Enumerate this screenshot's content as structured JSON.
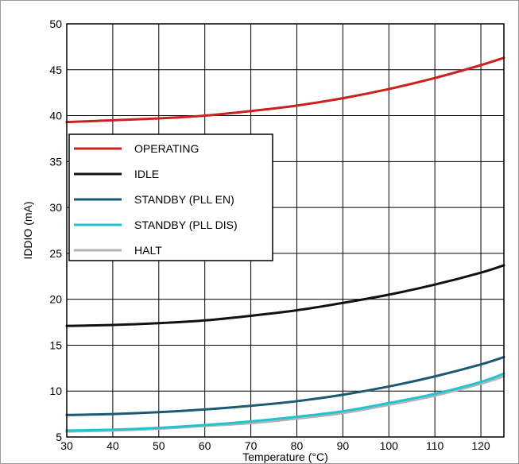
{
  "chart_data": {
    "type": "line",
    "title": "",
    "xlabel": "Temperature (°C)",
    "ylabel": "IDDIO (mA)",
    "xlim": [
      30,
      125
    ],
    "ylim": [
      5,
      50
    ],
    "xticks": [
      30,
      40,
      50,
      60,
      70,
      80,
      90,
      100,
      110,
      120
    ],
    "yticks": [
      5,
      10,
      15,
      20,
      25,
      30,
      35,
      40,
      45,
      50
    ],
    "grid": true,
    "legend_position": "upper-left",
    "series": [
      {
        "name": "OPERATING",
        "color": "#cc1f1f",
        "x": [
          30,
          40,
          50,
          60,
          70,
          80,
          90,
          100,
          110,
          120,
          125
        ],
        "y": [
          39.3,
          39.5,
          39.7,
          40.0,
          40.5,
          41.1,
          41.9,
          42.9,
          44.1,
          45.5,
          46.3
        ]
      },
      {
        "name": "IDLE",
        "color": "#111111",
        "x": [
          30,
          40,
          50,
          60,
          70,
          80,
          90,
          100,
          110,
          120,
          125
        ],
        "y": [
          17.1,
          17.2,
          17.4,
          17.7,
          18.2,
          18.8,
          19.6,
          20.5,
          21.6,
          22.9,
          23.7
        ]
      },
      {
        "name": "STANDBY (PLL EN)",
        "color": "#1b5a72",
        "x": [
          30,
          40,
          50,
          60,
          70,
          80,
          90,
          100,
          110,
          120,
          125
        ],
        "y": [
          7.4,
          7.5,
          7.7,
          8.0,
          8.4,
          8.9,
          9.6,
          10.5,
          11.6,
          12.9,
          13.7
        ]
      },
      {
        "name": "STANDBY (PLL DIS)",
        "color": "#20c4d0",
        "x": [
          30,
          40,
          50,
          60,
          70,
          80,
          90,
          100,
          110,
          120,
          125
        ],
        "y": [
          5.7,
          5.8,
          6.0,
          6.3,
          6.7,
          7.2,
          7.8,
          8.7,
          9.7,
          11.0,
          11.9
        ]
      },
      {
        "name": "HALT",
        "color": "#b4b4b4",
        "x": [
          30,
          40,
          50,
          60,
          70,
          80,
          90,
          100,
          110,
          120,
          125
        ],
        "y": [
          5.6,
          5.7,
          5.9,
          6.2,
          6.5,
          7.0,
          7.6,
          8.5,
          9.5,
          10.8,
          11.6
        ]
      }
    ]
  }
}
